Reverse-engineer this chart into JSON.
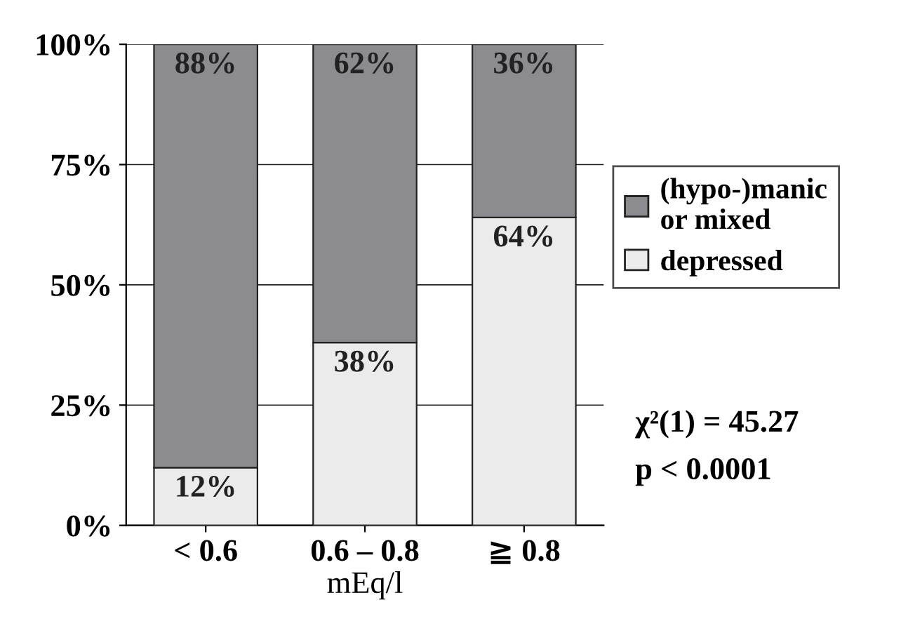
{
  "chart_data": {
    "type": "bar",
    "stacked": true,
    "xlabel": "mEq/l",
    "categories": [
      "< 0.6",
      "0.6 – 0.8",
      "≧ 0.8"
    ],
    "series": [
      {
        "name": "depressed",
        "color": "#ebebeb",
        "values": [
          12,
          38,
          64
        ],
        "value_labels": [
          "12%",
          "38%",
          "64%"
        ]
      },
      {
        "name": "(hypo-)manic\nor mixed",
        "color": "#8c8c90",
        "values": [
          88,
          62,
          36
        ],
        "value_labels": [
          "88%",
          "62%",
          "36%"
        ]
      }
    ],
    "ylim": [
      0,
      100
    ],
    "yticks": [
      {
        "value": 0,
        "label": "0%"
      },
      {
        "value": 25,
        "label": "25%"
      },
      {
        "value": 50,
        "label": "50%"
      },
      {
        "value": 75,
        "label": "75%"
      },
      {
        "value": 100,
        "label": "100%"
      }
    ],
    "grid": "y",
    "legend": "right",
    "annotations": [
      "χ²(1) = 45.27",
      "p < 0.0001"
    ]
  }
}
